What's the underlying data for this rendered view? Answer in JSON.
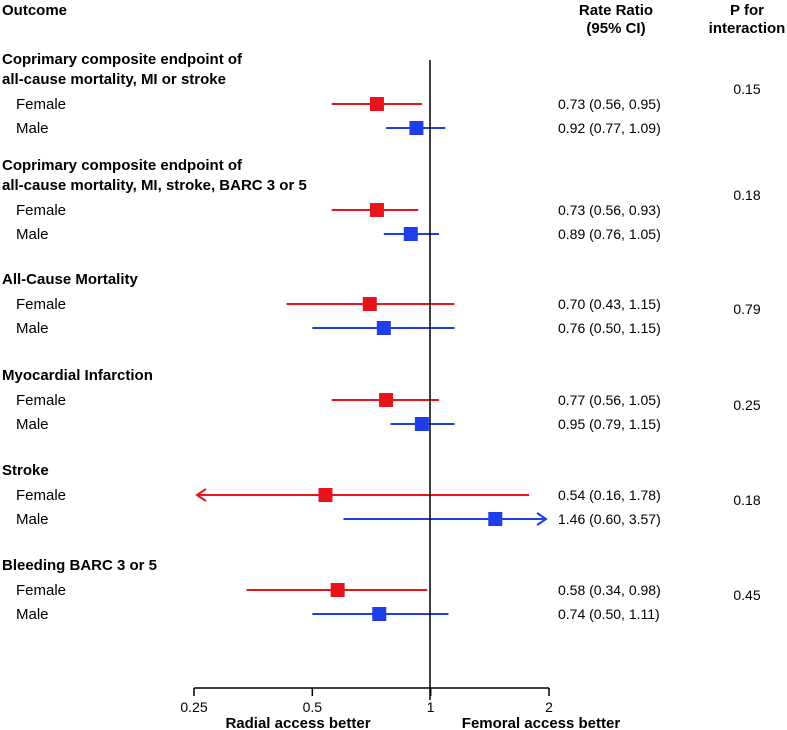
{
  "headers": {
    "outcome": "Outcome",
    "rate_ratio_line1": "Rate Ratio",
    "rate_ratio_line2": "(95% CI)",
    "p_line1": "P for",
    "p_line2": "interaction"
  },
  "x_axis": {
    "label_left": "Radial access better",
    "label_right": "Femoral access better"
  },
  "colors": {
    "female": "#e8141b",
    "male": "#1f3de8",
    "axis": "#000000"
  },
  "chart_data": {
    "type": "forest",
    "x_scale": "log",
    "xlim": [
      0.25,
      2
    ],
    "xticks": [
      {
        "value": 0.25,
        "label": "0.25"
      },
      {
        "value": 0.5,
        "label": "0.5"
      },
      {
        "value": 1,
        "label": "1"
      },
      {
        "value": 2,
        "label": "2"
      }
    ],
    "reference_line": 1,
    "groups": [
      {
        "title_lines": [
          "Coprimary composite endpoint of",
          "all-cause mortality, MI or stroke"
        ],
        "p_interaction": "0.15",
        "rows": [
          {
            "sex": "female",
            "label": "Female",
            "est": 0.73,
            "lo": 0.56,
            "hi": 0.95,
            "text": "0.73 (0.56, 0.95)"
          },
          {
            "sex": "male",
            "label": "Male",
            "est": 0.92,
            "lo": 0.77,
            "hi": 1.09,
            "text": "0.92 (0.77, 1.09)"
          }
        ]
      },
      {
        "title_lines": [
          "Coprimary composite endpoint of",
          "all-cause mortality, MI, stroke, BARC 3 or 5"
        ],
        "p_interaction": "0.18",
        "rows": [
          {
            "sex": "female",
            "label": "Female",
            "est": 0.73,
            "lo": 0.56,
            "hi": 0.93,
            "text": "0.73 (0.56, 0.93)"
          },
          {
            "sex": "male",
            "label": "Male",
            "est": 0.89,
            "lo": 0.76,
            "hi": 1.05,
            "text": "0.89 (0.76, 1.05)"
          }
        ]
      },
      {
        "title_lines": [
          "All-Cause Mortality"
        ],
        "p_interaction": "0.79",
        "rows": [
          {
            "sex": "female",
            "label": "Female",
            "est": 0.7,
            "lo": 0.43,
            "hi": 1.15,
            "text": "0.70 (0.43, 1.15)"
          },
          {
            "sex": "male",
            "label": "Male",
            "est": 0.76,
            "lo": 0.5,
            "hi": 1.15,
            "text": "0.76 (0.50, 1.15)"
          }
        ]
      },
      {
        "title_lines": [
          "Myocardial Infarction"
        ],
        "p_interaction": "0.25",
        "rows": [
          {
            "sex": "female",
            "label": "Female",
            "est": 0.77,
            "lo": 0.56,
            "hi": 1.05,
            "text": "0.77 (0.56, 1.05)"
          },
          {
            "sex": "male",
            "label": "Male",
            "est": 0.95,
            "lo": 0.79,
            "hi": 1.15,
            "text": "0.95 (0.79, 1.15)"
          }
        ]
      },
      {
        "title_lines": [
          "Stroke"
        ],
        "p_interaction": "0.18",
        "rows": [
          {
            "sex": "female",
            "label": "Female",
            "est": 0.54,
            "lo": 0.16,
            "hi": 1.78,
            "text": "0.54 (0.16, 1.78)"
          },
          {
            "sex": "male",
            "label": "Male",
            "est": 1.46,
            "lo": 0.6,
            "hi": 3.57,
            "text": "1.46 (0.60, 3.57)"
          }
        ]
      },
      {
        "title_lines": [
          "Bleeding BARC 3 or 5"
        ],
        "p_interaction": "0.45",
        "rows": [
          {
            "sex": "female",
            "label": "Female",
            "est": 0.58,
            "lo": 0.34,
            "hi": 0.98,
            "text": "0.58 (0.34, 0.98)"
          },
          {
            "sex": "male",
            "label": "Male",
            "est": 0.74,
            "lo": 0.5,
            "hi": 1.11,
            "text": "0.74 (0.50, 1.11)"
          }
        ]
      }
    ]
  }
}
